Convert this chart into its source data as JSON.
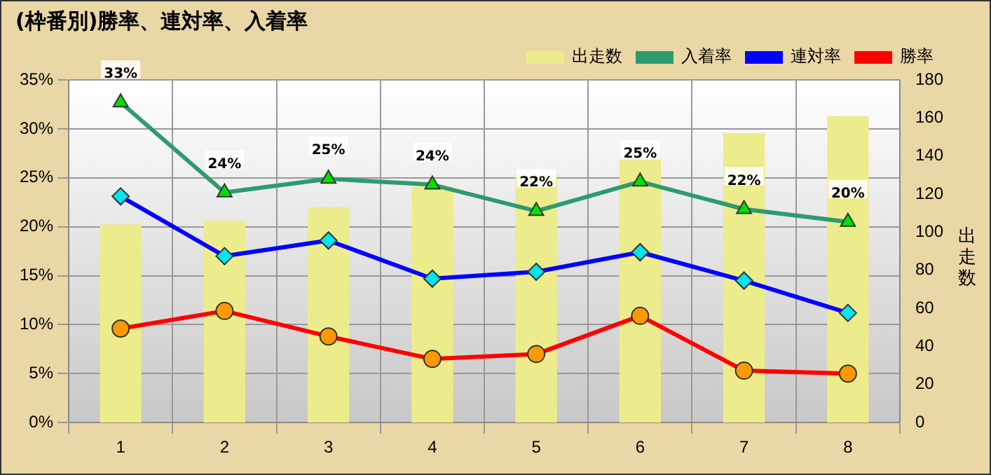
{
  "chart_data": {
    "type": "line",
    "title": "(枠番別)勝率、連対率、入着率",
    "y2label": "出走数",
    "categories": [
      "1",
      "2",
      "3",
      "4",
      "5",
      "6",
      "7",
      "8"
    ],
    "series": [
      {
        "name": "出走数",
        "type": "bar",
        "axis": "y2",
        "color": "#ecec8c",
        "values": [
          104,
          106,
          113,
          124,
          130,
          138,
          152,
          161
        ]
      },
      {
        "name": "入着率",
        "color": "#2e9b6e",
        "marker": "triangle",
        "values": [
          32.7,
          23.5,
          24.9,
          24.3,
          21.6,
          24.6,
          21.8,
          20.5
        ],
        "value_labels": [
          "33%",
          "24%",
          "25%",
          "24%",
          "22%",
          "25%",
          "22%",
          "20%"
        ]
      },
      {
        "name": "連対率",
        "color": "#0000ff",
        "marker": "diamond",
        "values": [
          23.1,
          17.0,
          18.6,
          14.7,
          15.4,
          17.4,
          14.5,
          11.2
        ]
      },
      {
        "name": "勝率",
        "color": "#ff0000",
        "marker": "circle",
        "values": [
          9.6,
          11.4,
          8.8,
          6.5,
          7.0,
          10.9,
          5.3,
          5.0
        ]
      }
    ],
    "ylim": [
      0,
      35
    ],
    "yticks": [
      {
        "value": 0,
        "label": "0%"
      },
      {
        "value": 5,
        "label": "5%"
      },
      {
        "value": 10,
        "label": "10%"
      },
      {
        "value": 15,
        "label": "15%"
      },
      {
        "value": 20,
        "label": "20%"
      },
      {
        "value": 25,
        "label": "25%"
      },
      {
        "value": 30,
        "label": "30%"
      },
      {
        "value": 35,
        "label": "35%"
      }
    ],
    "y2lim": [
      0,
      180
    ],
    "y2ticks": [
      0,
      20,
      40,
      60,
      80,
      100,
      120,
      140,
      160,
      180
    ],
    "grid": true,
    "legend": "top right",
    "line_style": "solid"
  }
}
